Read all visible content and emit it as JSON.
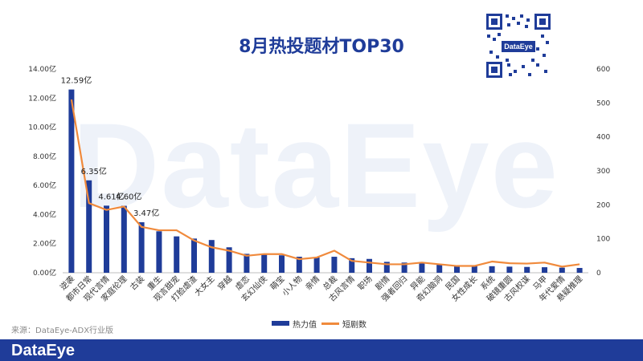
{
  "title": "8月热投题材TOP30",
  "qr_label": "DataEye",
  "watermark": "DataEye",
  "source": "来源：DataEye-ADX行业版",
  "footer_brand": "DataEye",
  "colors": {
    "bar": "#1f3c99",
    "line": "#f08a3c",
    "footer": "#1f3c99"
  },
  "chart_data": {
    "type": "bar+line",
    "categories": [
      "逆袭",
      "都市日常",
      "现代言情",
      "家庭伦理",
      "古装",
      "重生",
      "现言甜宠",
      "打脸虐渣",
      "大女主",
      "穿越",
      "虐恋",
      "玄幻仙侠",
      "萌宝",
      "小人物",
      "亲情",
      "总裁",
      "古风言情",
      "职场",
      "剧情",
      "强者回归",
      "异能",
      "奇幻脑洞",
      "民国",
      "女性成长",
      "系统",
      "破镜重圆",
      "古风权谋",
      "马甲",
      "年代爱情",
      "悬疑推理"
    ],
    "series": [
      {
        "name": "热力值",
        "type": "bar",
        "axis": "left",
        "values": [
          12.59,
          6.35,
          4.61,
          4.6,
          3.47,
          2.85,
          2.5,
          2.35,
          2.25,
          1.75,
          1.3,
          1.25,
          1.2,
          1.1,
          1.05,
          1.1,
          1.0,
          0.95,
          0.75,
          0.7,
          0.65,
          0.6,
          0.5,
          0.48,
          0.45,
          0.42,
          0.4,
          0.38,
          0.35,
          0.33
        ]
      },
      {
        "name": "短剧数",
        "type": "line",
        "axis": "right",
        "values": [
          510,
          205,
          185,
          195,
          135,
          125,
          125,
          95,
          75,
          65,
          50,
          55,
          55,
          40,
          45,
          65,
          35,
          30,
          25,
          25,
          30,
          25,
          20,
          20,
          33,
          28,
          27,
          30,
          18,
          25
        ]
      }
    ],
    "data_labels": [
      {
        "index": 0,
        "text": "12.59亿"
      },
      {
        "index": 1,
        "text": "6.35亿"
      },
      {
        "index": 2,
        "text": "4.61亿"
      },
      {
        "index": 3,
        "text": "4.60亿"
      },
      {
        "index": 4,
        "text": "3.47亿"
      }
    ],
    "left_axis": {
      "ticks": [
        "0.00亿",
        "2.00亿",
        "4.00亿",
        "6.00亿",
        "8.00亿",
        "10.00亿",
        "12.00亿",
        "14.00亿"
      ],
      "range": [
        0,
        14
      ]
    },
    "right_axis": {
      "ticks": [
        "0",
        "100",
        "200",
        "300",
        "400",
        "500",
        "600"
      ],
      "range": [
        0,
        600
      ]
    },
    "legend": [
      "热力值",
      "短剧数"
    ],
    "legend_position": "bottom"
  }
}
